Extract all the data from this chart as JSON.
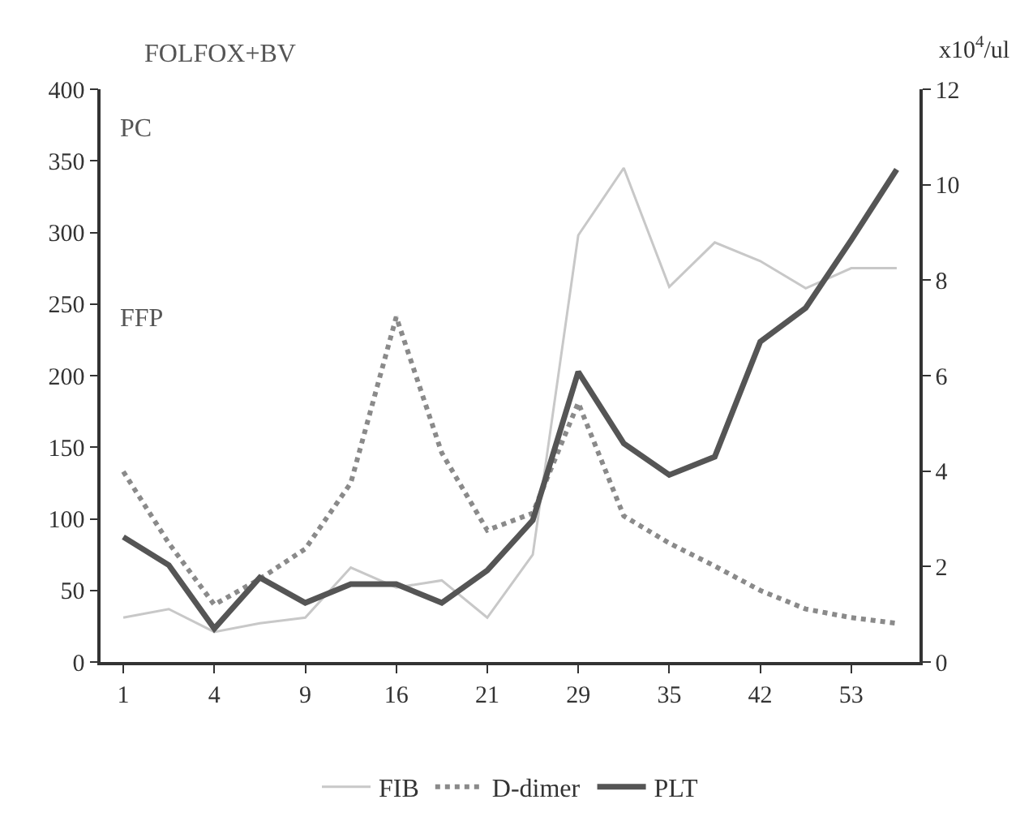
{
  "chart_data": {
    "type": "line",
    "y2label": "x10$^{4}$/ul",
    "categories": [
      "1",
      null,
      "4",
      null,
      "9",
      null,
      "16",
      null,
      "21",
      null,
      "29",
      null,
      "35",
      null,
      "42",
      null,
      "53",
      null
    ],
    "series": [
      {
        "name": "FIB",
        "color": "#c8c8c8",
        "line_style": "solid",
        "values": [
          31,
          37,
          21,
          27,
          31,
          66,
          52,
          57,
          31,
          75,
          298,
          345,
          262,
          293,
          280,
          261,
          275,
          275
        ]
      },
      {
        "name": "D-dimer",
        "color": "#8a8a8a",
        "line_style": "dotted",
        "values": [
          133,
          83,
          40,
          58,
          79,
          125,
          241,
          146,
          92,
          104,
          181,
          102,
          83,
          67,
          50,
          37,
          31,
          27
        ]
      },
      {
        "name": "PLT",
        "color": "#555555",
        "line_style": "solid",
        "axis": "y2",
        "values": [
          2.62,
          2.03,
          0.7,
          1.77,
          1.24,
          1.63,
          1.63,
          1.24,
          1.92,
          2.97,
          6.08,
          4.58,
          3.92,
          4.3,
          6.71,
          7.42,
          8.84,
          10.32
        ]
      }
    ],
    "ylim": [
      0,
      400
    ],
    "yticks": [
      0,
      50,
      100,
      150,
      200,
      250,
      300,
      350,
      400
    ],
    "y2lim": [
      0,
      12
    ],
    "y2ticks": [
      0,
      2,
      4,
      6,
      8,
      10,
      12
    ],
    "annotations": [
      "FOLFOX+BV",
      "PC",
      "FFP"
    ],
    "legend": "bottom",
    "marker": "none"
  }
}
